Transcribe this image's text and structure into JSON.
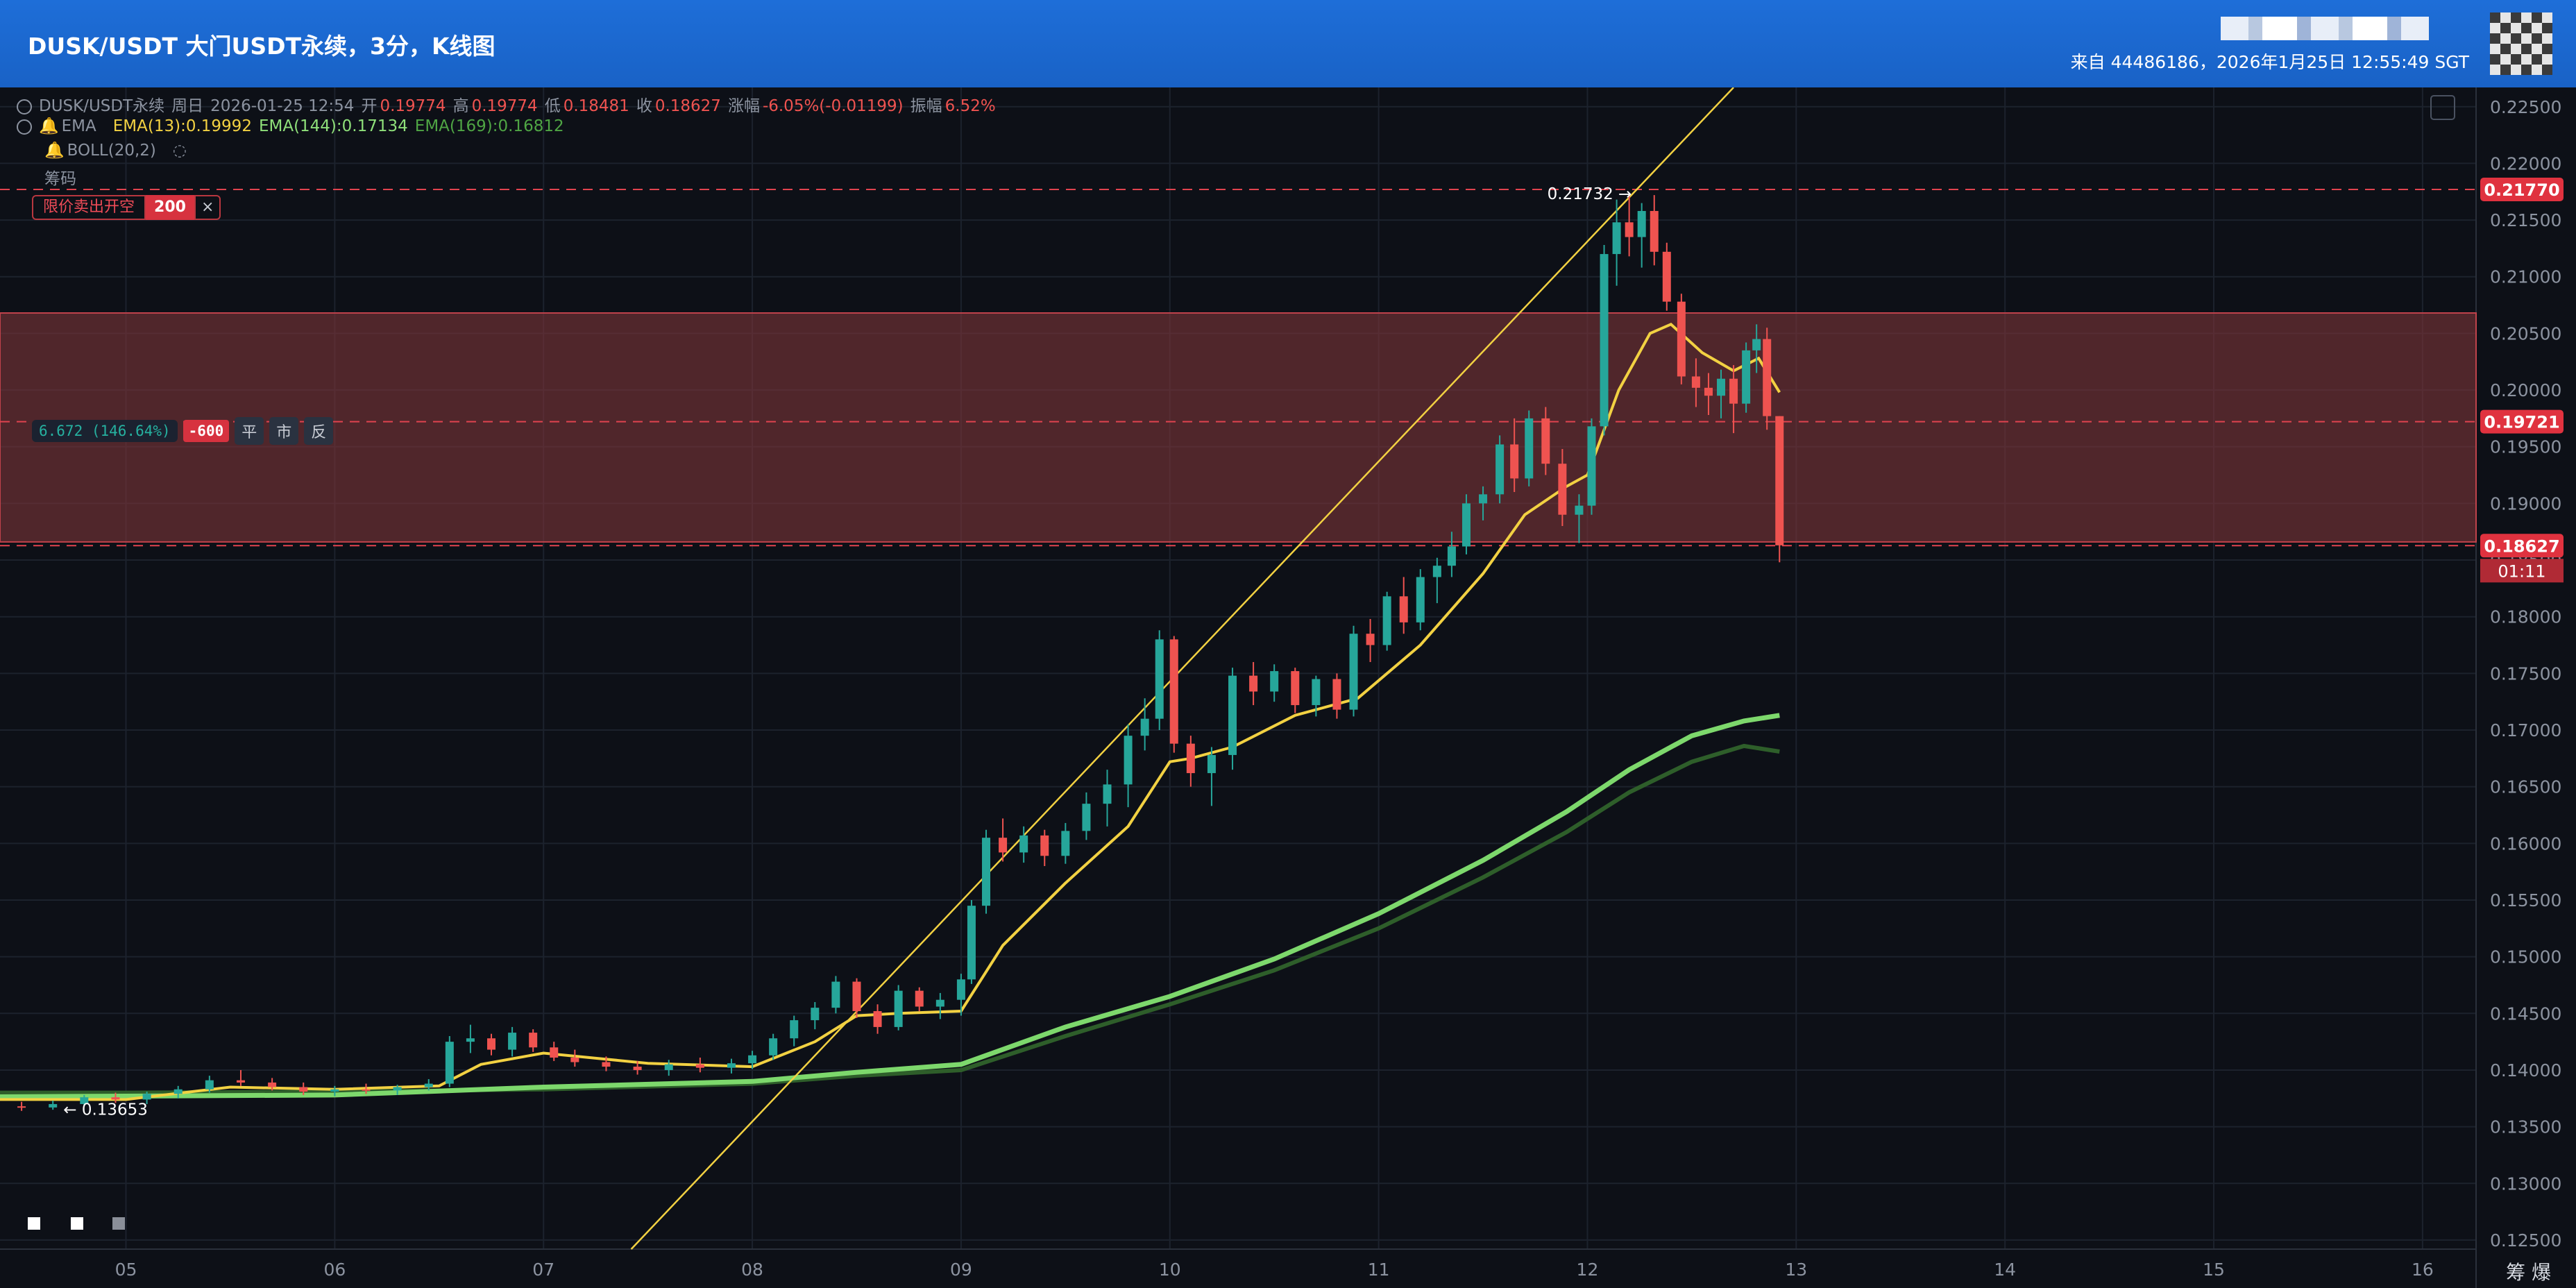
{
  "header": {
    "title": "DUSK/USDT 大门USDT永续，3分，K线图",
    "source_line": "来自 44486186，2026年1月25日 12:55:49 SGT"
  },
  "legend": {
    "line1": {
      "symbol": "DUSK/USDT永续",
      "period": "周日",
      "datetime": "2026-01-25 12:54",
      "open_label": "开",
      "open": "0.19774",
      "high_label": "高",
      "high": "0.19774",
      "low_label": "低",
      "low": "0.18481",
      "close_label": "收",
      "close": "0.18627",
      "change_label": "涨幅",
      "change": "-6.05%(-0.01199)",
      "amplitude_label": "振幅",
      "amplitude": "6.52%"
    },
    "line2": {
      "name": "EMA",
      "ema13": "EMA(13):0.19992",
      "ema144": "EMA(144):0.17134",
      "ema169": "EMA(169):0.16812"
    },
    "line3": {
      "name": "BOLL(20,2)"
    },
    "line4": {
      "name": "筹码"
    }
  },
  "order": {
    "label": "限价卖出开空",
    "qty": "200",
    "close": "×"
  },
  "position": {
    "pnl": "6.672 (146.64%)",
    "qty": "-600",
    "btn_flat": "平",
    "btn_market": "市",
    "btn_reverse": "反"
  },
  "corner_text": "筹 爆",
  "colors": {
    "up": "#26a69a",
    "down": "#ef5350",
    "ema13": "#f2d142",
    "ema144": "#7dd86c",
    "ema169": "#2e5e2a",
    "trendline": "#f2d142",
    "zone_fill": "#7a3338",
    "price_badge": "#e0323f"
  },
  "chart_data": {
    "type": "candlestick",
    "x_axis": {
      "ticks": [
        "05",
        "06",
        "07",
        "08",
        "09",
        "10",
        "11",
        "12",
        "13",
        "14",
        "15",
        "16"
      ],
      "range": [
        4.4,
        16.15
      ]
    },
    "y_axis": {
      "range": [
        0.1242,
        0.2267
      ],
      "ticks": [
        "0.12500",
        "0.13000",
        "0.13500",
        "0.14000",
        "0.14500",
        "0.15000",
        "0.15500",
        "0.16000",
        "0.16500",
        "0.17000",
        "0.17500",
        "0.18000",
        "0.18500",
        "0.19000",
        "0.19500",
        "0.20000",
        "0.20500",
        "0.21000",
        "0.21500",
        "0.22000",
        "0.22500"
      ]
    },
    "price_lines": [
      {
        "price": 0.2177,
        "label": "0.21770",
        "kind": "order"
      },
      {
        "price": 0.19721,
        "label": "0.19721",
        "kind": "entry"
      },
      {
        "price": 0.18627,
        "label": "0.18627",
        "kind": "last"
      }
    ],
    "countdown": "01:11",
    "zone": {
      "top": 0.2068,
      "bottom": 0.1866
    },
    "annotations": [
      {
        "text": "0.21732 →",
        "x": 12.2,
        "price": 0.21732
      },
      {
        "text": "← 0.13653",
        "x": 4.7,
        "price": 0.13653
      }
    ],
    "trendline": {
      "x1": 7.42,
      "y1": 0.1242,
      "x2": 12.7,
      "y2": 0.2267
    },
    "candles": [
      {
        "x": 4.05,
        "o": 0.1375,
        "h": 0.1379,
        "l": 0.1368,
        "c": 0.1372
      },
      {
        "x": 4.2,
        "o": 0.1372,
        "h": 0.1376,
        "l": 0.1366,
        "c": 0.137
      },
      {
        "x": 4.35,
        "o": 0.137,
        "h": 0.1374,
        "l": 0.1365,
        "c": 0.1368
      },
      {
        "x": 4.5,
        "o": 0.1368,
        "h": 0.1372,
        "l": 0.1364,
        "c": 0.1367
      },
      {
        "x": 4.65,
        "o": 0.1367,
        "h": 0.1373,
        "l": 0.1365,
        "c": 0.137
      },
      {
        "x": 4.8,
        "o": 0.137,
        "h": 0.1378,
        "l": 0.1368,
        "c": 0.1376
      },
      {
        "x": 4.95,
        "o": 0.1376,
        "h": 0.138,
        "l": 0.1371,
        "c": 0.1374
      },
      {
        "x": 5.1,
        "o": 0.1374,
        "h": 0.1381,
        "l": 0.137,
        "c": 0.1379
      },
      {
        "x": 5.25,
        "o": 0.1379,
        "h": 0.1386,
        "l": 0.1375,
        "c": 0.1383
      },
      {
        "x": 5.4,
        "o": 0.1383,
        "h": 0.1395,
        "l": 0.138,
        "c": 0.1391
      },
      {
        "x": 5.55,
        "o": 0.1391,
        "h": 0.14,
        "l": 0.1386,
        "c": 0.1389
      },
      {
        "x": 5.7,
        "o": 0.1389,
        "h": 0.1393,
        "l": 0.1382,
        "c": 0.1385
      },
      {
        "x": 5.85,
        "o": 0.1385,
        "h": 0.1389,
        "l": 0.1378,
        "c": 0.1381
      },
      {
        "x": 6.0,
        "o": 0.1381,
        "h": 0.1386,
        "l": 0.1377,
        "c": 0.1383
      },
      {
        "x": 6.15,
        "o": 0.1383,
        "h": 0.1388,
        "l": 0.1379,
        "c": 0.1382
      },
      {
        "x": 6.3,
        "o": 0.1382,
        "h": 0.1387,
        "l": 0.1378,
        "c": 0.1385
      },
      {
        "x": 6.45,
        "o": 0.1385,
        "h": 0.1392,
        "l": 0.1382,
        "c": 0.1388
      },
      {
        "x": 6.55,
        "o": 0.1388,
        "h": 0.143,
        "l": 0.1385,
        "c": 0.1425
      },
      {
        "x": 6.65,
        "o": 0.1425,
        "h": 0.144,
        "l": 0.1415,
        "c": 0.1428
      },
      {
        "x": 6.75,
        "o": 0.1428,
        "h": 0.1432,
        "l": 0.1413,
        "c": 0.1418
      },
      {
        "x": 6.85,
        "o": 0.1418,
        "h": 0.1438,
        "l": 0.1412,
        "c": 0.1433
      },
      {
        "x": 6.95,
        "o": 0.1433,
        "h": 0.1436,
        "l": 0.1416,
        "c": 0.142
      },
      {
        "x": 7.05,
        "o": 0.142,
        "h": 0.1425,
        "l": 0.1408,
        "c": 0.1411
      },
      {
        "x": 7.15,
        "o": 0.1411,
        "h": 0.1418,
        "l": 0.1403,
        "c": 0.1407
      },
      {
        "x": 7.3,
        "o": 0.1407,
        "h": 0.1412,
        "l": 0.1399,
        "c": 0.1403
      },
      {
        "x": 7.45,
        "o": 0.1403,
        "h": 0.1408,
        "l": 0.1396,
        "c": 0.14
      },
      {
        "x": 7.6,
        "o": 0.14,
        "h": 0.1409,
        "l": 0.1395,
        "c": 0.1405
      },
      {
        "x": 7.75,
        "o": 0.1405,
        "h": 0.1411,
        "l": 0.1398,
        "c": 0.1402
      },
      {
        "x": 7.9,
        "o": 0.1402,
        "h": 0.141,
        "l": 0.1397,
        "c": 0.1406
      },
      {
        "x": 8.0,
        "o": 0.1406,
        "h": 0.1417,
        "l": 0.1401,
        "c": 0.1413
      },
      {
        "x": 8.1,
        "o": 0.1413,
        "h": 0.1432,
        "l": 0.1409,
        "c": 0.1428
      },
      {
        "x": 8.2,
        "o": 0.1428,
        "h": 0.1448,
        "l": 0.1421,
        "c": 0.1444
      },
      {
        "x": 8.3,
        "o": 0.1444,
        "h": 0.146,
        "l": 0.1436,
        "c": 0.1455
      },
      {
        "x": 8.4,
        "o": 0.1455,
        "h": 0.1483,
        "l": 0.145,
        "c": 0.1478
      },
      {
        "x": 8.5,
        "o": 0.1478,
        "h": 0.1481,
        "l": 0.1446,
        "c": 0.1452
      },
      {
        "x": 8.6,
        "o": 0.1452,
        "h": 0.1458,
        "l": 0.1432,
        "c": 0.1438
      },
      {
        "x": 8.7,
        "o": 0.1438,
        "h": 0.1475,
        "l": 0.1435,
        "c": 0.147
      },
      {
        "x": 8.8,
        "o": 0.147,
        "h": 0.1473,
        "l": 0.1452,
        "c": 0.1456
      },
      {
        "x": 8.9,
        "o": 0.1456,
        "h": 0.1468,
        "l": 0.1445,
        "c": 0.1462
      },
      {
        "x": 9.0,
        "o": 0.1462,
        "h": 0.1485,
        "l": 0.1448,
        "c": 0.148
      },
      {
        "x": 9.05,
        "o": 0.148,
        "h": 0.155,
        "l": 0.1476,
        "c": 0.1545
      },
      {
        "x": 9.12,
        "o": 0.1545,
        "h": 0.1612,
        "l": 0.1538,
        "c": 0.1605
      },
      {
        "x": 9.2,
        "o": 0.1605,
        "h": 0.1622,
        "l": 0.1584,
        "c": 0.1592
      },
      {
        "x": 9.3,
        "o": 0.1592,
        "h": 0.1615,
        "l": 0.1583,
        "c": 0.1607
      },
      {
        "x": 9.4,
        "o": 0.1607,
        "h": 0.1612,
        "l": 0.158,
        "c": 0.1589
      },
      {
        "x": 9.5,
        "o": 0.1589,
        "h": 0.1618,
        "l": 0.1582,
        "c": 0.1611
      },
      {
        "x": 9.6,
        "o": 0.1611,
        "h": 0.1645,
        "l": 0.1603,
        "c": 0.1635
      },
      {
        "x": 9.7,
        "o": 0.1635,
        "h": 0.1665,
        "l": 0.1615,
        "c": 0.1652
      },
      {
        "x": 9.8,
        "o": 0.1652,
        "h": 0.1705,
        "l": 0.1632,
        "c": 0.1695
      },
      {
        "x": 9.88,
        "o": 0.1695,
        "h": 0.1728,
        "l": 0.1682,
        "c": 0.171
      },
      {
        "x": 9.95,
        "o": 0.171,
        "h": 0.1788,
        "l": 0.17,
        "c": 0.178
      },
      {
        "x": 10.02,
        "o": 0.178,
        "h": 0.1783,
        "l": 0.168,
        "c": 0.1688
      },
      {
        "x": 10.1,
        "o": 0.1688,
        "h": 0.1695,
        "l": 0.165,
        "c": 0.1662
      },
      {
        "x": 10.2,
        "o": 0.1662,
        "h": 0.1685,
        "l": 0.1633,
        "c": 0.1678
      },
      {
        "x": 10.3,
        "o": 0.1678,
        "h": 0.1755,
        "l": 0.1665,
        "c": 0.1748
      },
      {
        "x": 10.4,
        "o": 0.1748,
        "h": 0.176,
        "l": 0.1722,
        "c": 0.1734
      },
      {
        "x": 10.5,
        "o": 0.1734,
        "h": 0.1758,
        "l": 0.1725,
        "c": 0.1752
      },
      {
        "x": 10.6,
        "o": 0.1752,
        "h": 0.1755,
        "l": 0.1715,
        "c": 0.1722
      },
      {
        "x": 10.7,
        "o": 0.1722,
        "h": 0.1748,
        "l": 0.1712,
        "c": 0.1745
      },
      {
        "x": 10.8,
        "o": 0.1745,
        "h": 0.175,
        "l": 0.171,
        "c": 0.1718
      },
      {
        "x": 10.88,
        "o": 0.1718,
        "h": 0.1792,
        "l": 0.1712,
        "c": 0.1785
      },
      {
        "x": 10.96,
        "o": 0.1785,
        "h": 0.1798,
        "l": 0.176,
        "c": 0.1775
      },
      {
        "x": 11.04,
        "o": 0.1775,
        "h": 0.1822,
        "l": 0.177,
        "c": 0.1818
      },
      {
        "x": 11.12,
        "o": 0.1818,
        "h": 0.1835,
        "l": 0.1785,
        "c": 0.1795
      },
      {
        "x": 11.2,
        "o": 0.1795,
        "h": 0.1842,
        "l": 0.1788,
        "c": 0.1835
      },
      {
        "x": 11.28,
        "o": 0.1835,
        "h": 0.1852,
        "l": 0.1812,
        "c": 0.1845
      },
      {
        "x": 11.35,
        "o": 0.1845,
        "h": 0.1875,
        "l": 0.1835,
        "c": 0.1862
      },
      {
        "x": 11.42,
        "o": 0.1862,
        "h": 0.1908,
        "l": 0.1855,
        "c": 0.19
      },
      {
        "x": 11.5,
        "o": 0.19,
        "h": 0.1915,
        "l": 0.1885,
        "c": 0.1908
      },
      {
        "x": 11.58,
        "o": 0.1908,
        "h": 0.196,
        "l": 0.19,
        "c": 0.1952
      },
      {
        "x": 11.65,
        "o": 0.1952,
        "h": 0.1975,
        "l": 0.191,
        "c": 0.1922
      },
      {
        "x": 11.72,
        "o": 0.1922,
        "h": 0.1982,
        "l": 0.1915,
        "c": 0.1975
      },
      {
        "x": 11.8,
        "o": 0.1975,
        "h": 0.1985,
        "l": 0.1925,
        "c": 0.1935
      },
      {
        "x": 11.88,
        "o": 0.1935,
        "h": 0.1948,
        "l": 0.188,
        "c": 0.189
      },
      {
        "x": 11.96,
        "o": 0.189,
        "h": 0.1908,
        "l": 0.1865,
        "c": 0.1898
      },
      {
        "x": 12.02,
        "o": 0.1898,
        "h": 0.1975,
        "l": 0.189,
        "c": 0.1968
      },
      {
        "x": 12.08,
        "o": 0.1968,
        "h": 0.2128,
        "l": 0.196,
        "c": 0.212
      },
      {
        "x": 12.14,
        "o": 0.212,
        "h": 0.2168,
        "l": 0.2092,
        "c": 0.2148
      },
      {
        "x": 12.2,
        "o": 0.2148,
        "h": 0.2173,
        "l": 0.2118,
        "c": 0.2135
      },
      {
        "x": 12.26,
        "o": 0.2135,
        "h": 0.2165,
        "l": 0.2108,
        "c": 0.2158
      },
      {
        "x": 12.32,
        "o": 0.2158,
        "h": 0.2172,
        "l": 0.211,
        "c": 0.2122
      },
      {
        "x": 12.38,
        "o": 0.2122,
        "h": 0.213,
        "l": 0.207,
        "c": 0.2078
      },
      {
        "x": 12.45,
        "o": 0.2078,
        "h": 0.2085,
        "l": 0.2005,
        "c": 0.2012
      },
      {
        "x": 12.52,
        "o": 0.2012,
        "h": 0.2028,
        "l": 0.1985,
        "c": 0.2002
      },
      {
        "x": 12.58,
        "o": 0.2002,
        "h": 0.2015,
        "l": 0.1978,
        "c": 0.1995
      },
      {
        "x": 12.64,
        "o": 0.1995,
        "h": 0.2018,
        "l": 0.1975,
        "c": 0.201
      },
      {
        "x": 12.7,
        "o": 0.201,
        "h": 0.2022,
        "l": 0.1962,
        "c": 0.1988
      },
      {
        "x": 12.76,
        "o": 0.1988,
        "h": 0.2042,
        "l": 0.198,
        "c": 0.2035
      },
      {
        "x": 12.81,
        "o": 0.2035,
        "h": 0.2058,
        "l": 0.2015,
        "c": 0.2045
      },
      {
        "x": 12.86,
        "o": 0.2045,
        "h": 0.2055,
        "l": 0.1965,
        "c": 0.1977
      },
      {
        "x": 12.92,
        "o": 0.1977,
        "h": 0.1977,
        "l": 0.1848,
        "c": 0.1863
      }
    ],
    "ema13": [
      [
        4.0,
        0.1374
      ],
      [
        5.0,
        0.1374
      ],
      [
        5.5,
        0.1385
      ],
      [
        6.0,
        0.1383
      ],
      [
        6.5,
        0.1386
      ],
      [
        6.7,
        0.1405
      ],
      [
        7.0,
        0.1415
      ],
      [
        7.5,
        0.1406
      ],
      [
        8.0,
        0.1403
      ],
      [
        8.3,
        0.1425
      ],
      [
        8.5,
        0.1448
      ],
      [
        8.7,
        0.145
      ],
      [
        9.0,
        0.1452
      ],
      [
        9.2,
        0.151
      ],
      [
        9.5,
        0.1565
      ],
      [
        9.8,
        0.1615
      ],
      [
        10.0,
        0.1672
      ],
      [
        10.1,
        0.1675
      ],
      [
        10.3,
        0.1685
      ],
      [
        10.6,
        0.1713
      ],
      [
        10.9,
        0.1728
      ],
      [
        11.2,
        0.1775
      ],
      [
        11.5,
        0.1838
      ],
      [
        11.7,
        0.189
      ],
      [
        11.9,
        0.1915
      ],
      [
        12.0,
        0.1925
      ],
      [
        12.15,
        0.2
      ],
      [
        12.3,
        0.205
      ],
      [
        12.4,
        0.2058
      ],
      [
        12.55,
        0.2033
      ],
      [
        12.7,
        0.2017
      ],
      [
        12.82,
        0.2028
      ],
      [
        12.92,
        0.1998
      ]
    ],
    "ema144": [
      [
        4.0,
        0.1376
      ],
      [
        5.0,
        0.1377
      ],
      [
        6.0,
        0.1378
      ],
      [
        7.0,
        0.1385
      ],
      [
        8.0,
        0.139
      ],
      [
        8.5,
        0.1398
      ],
      [
        9.0,
        0.1405
      ],
      [
        9.5,
        0.1438
      ],
      [
        10.0,
        0.1465
      ],
      [
        10.5,
        0.1498
      ],
      [
        11.0,
        0.1538
      ],
      [
        11.5,
        0.1585
      ],
      [
        11.9,
        0.1628
      ],
      [
        12.2,
        0.1665
      ],
      [
        12.5,
        0.1695
      ],
      [
        12.75,
        0.1708
      ],
      [
        12.92,
        0.1713
      ]
    ],
    "ema169": [
      [
        4.0,
        0.138
      ],
      [
        5.0,
        0.138
      ],
      [
        6.0,
        0.1381
      ],
      [
        7.0,
        0.1383
      ],
      [
        8.0,
        0.1388
      ],
      [
        8.5,
        0.1395
      ],
      [
        9.0,
        0.14
      ],
      [
        9.5,
        0.143
      ],
      [
        10.0,
        0.1458
      ],
      [
        10.5,
        0.1488
      ],
      [
        11.0,
        0.1525
      ],
      [
        11.5,
        0.157
      ],
      [
        11.9,
        0.161
      ],
      [
        12.2,
        0.1645
      ],
      [
        12.5,
        0.1672
      ],
      [
        12.75,
        0.1686
      ],
      [
        12.92,
        0.1681
      ]
    ]
  }
}
